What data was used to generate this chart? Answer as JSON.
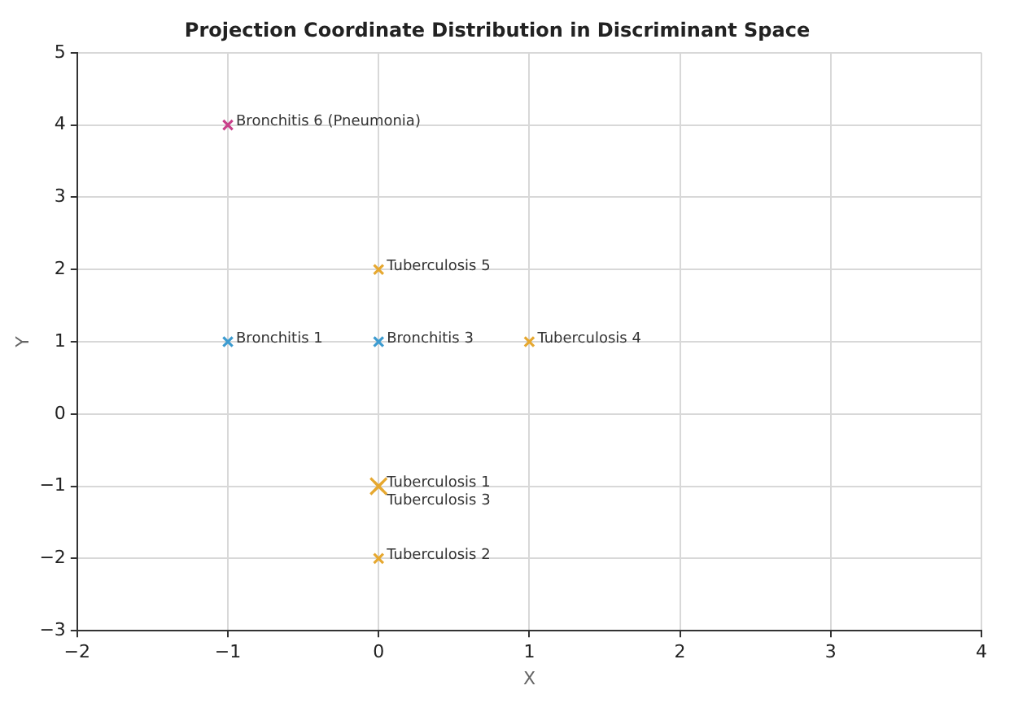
{
  "chart_data": {
    "type": "scatter",
    "title": "Projection Coordinate Distribution in Discriminant Space",
    "xlabel": "X",
    "ylabel": "Y",
    "x": [
      -1,
      0,
      -1,
      0,
      1,
      0,
      0,
      0
    ],
    "values": [
      4,
      2,
      1,
      1,
      1,
      -1,
      -1,
      -2
    ],
    "colors": [
      "#c8408a",
      "#e6a830",
      "#3c9bd0",
      "#3c9bd0",
      "#e6a830",
      "#e6a830",
      "#e6a830",
      "#e6a830"
    ],
    "annotations": [
      {
        "text": "Bronchitis 6 (Pneumonia)",
        "x": -1,
        "y": 4
      },
      {
        "text": "Tuberculosis 5",
        "x": 0,
        "y": 2
      },
      {
        "text": "Bronchitis 1",
        "x": -1,
        "y": 1
      },
      {
        "text": "Bronchitis 3",
        "x": 0,
        "y": 1
      },
      {
        "text": "Tuberculosis 4",
        "x": 1,
        "y": 1
      },
      {
        "text": "Tuberculosis 1",
        "x": 0,
        "y": -1
      },
      {
        "text": "Tuberculosis 3",
        "x": 0,
        "y": -1
      },
      {
        "text": "Tuberculosis 2",
        "x": 0,
        "y": -2
      }
    ],
    "xlim": [
      -2,
      4
    ],
    "xticks": [
      -2,
      -1,
      0,
      1,
      2,
      3,
      4
    ],
    "ylim": [
      -3,
      5
    ],
    "yticks": [
      -3,
      -2,
      -1,
      0,
      1,
      2,
      3,
      4,
      5
    ],
    "grid": true,
    "marker": "cross",
    "legend": false
  }
}
